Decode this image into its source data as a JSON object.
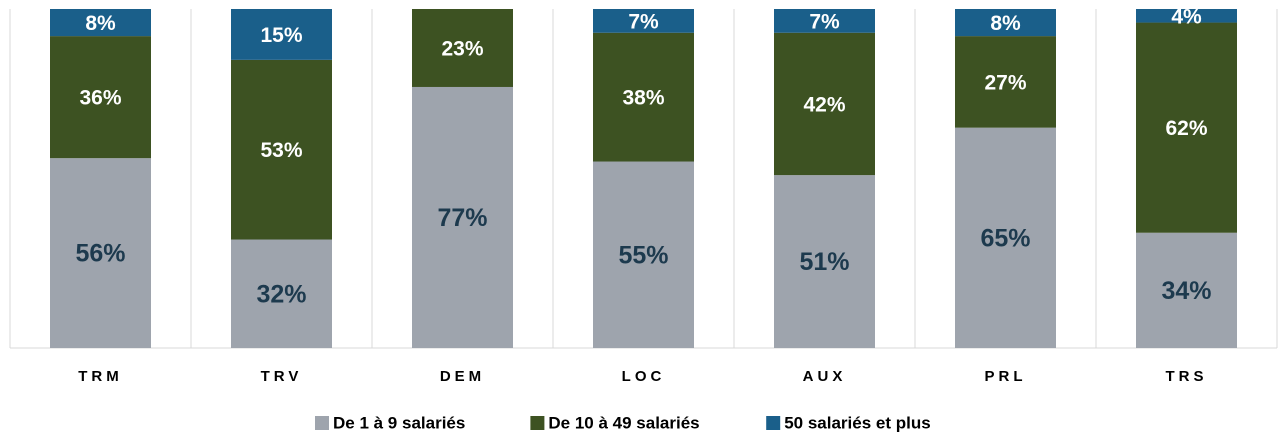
{
  "chart_data": {
    "type": "stacked_bar",
    "categories": [
      "TRM",
      "TRV",
      "DEM",
      "LOC",
      "AUX",
      "PRL",
      "TRS"
    ],
    "series": [
      {
        "name": "De 1 à 9 salariés",
        "color": "#9ea4ad",
        "values": [
          56,
          32,
          77,
          55,
          51,
          65,
          34
        ],
        "value_labels": [
          "56%",
          "32%",
          "77%",
          "55%",
          "51%",
          "65%",
          "34%"
        ]
      },
      {
        "name": "De 10 à 49 salariés",
        "color": "#3d5222",
        "values": [
          36,
          53,
          23,
          38,
          42,
          27,
          62
        ],
        "value_labels": [
          "36%",
          "53%",
          "23%",
          "38%",
          "42%",
          "27%",
          "62%"
        ]
      },
      {
        "name": "50 salariés et plus",
        "color": "#1a5f8a",
        "values": [
          8,
          15,
          null,
          7,
          7,
          8,
          4
        ],
        "value_labels": [
          "8%",
          "15%",
          null,
          "7%",
          "7%",
          "8%",
          "4%"
        ]
      }
    ],
    "ylim": [
      0,
      100
    ],
    "legend": "bottom"
  }
}
